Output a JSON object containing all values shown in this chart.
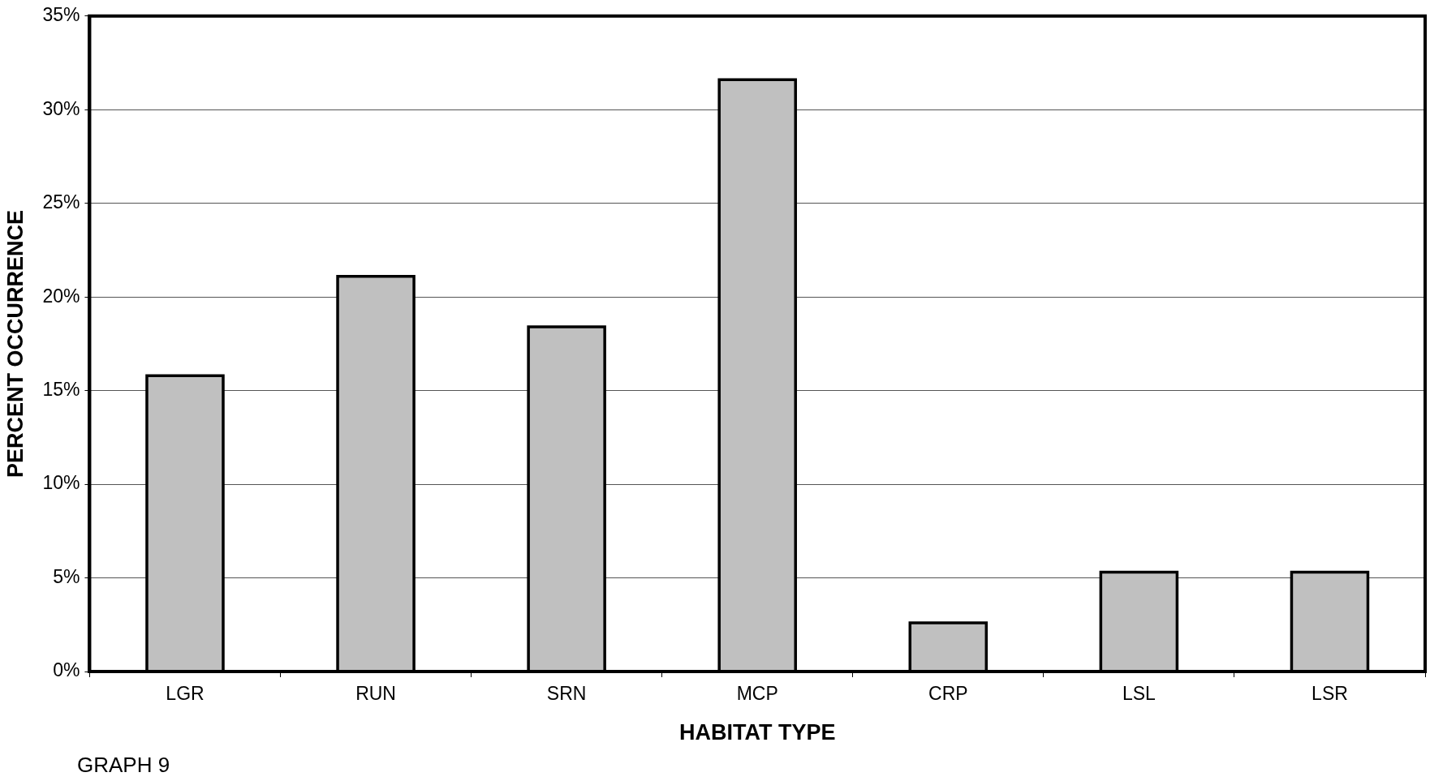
{
  "chart_data": {
    "type": "bar",
    "xlabel": "HABITAT TYPE",
    "ylabel": "PERCENT OCCURRENCE",
    "categories": [
      "LGR",
      "RUN",
      "SRN",
      "MCP",
      "CRP",
      "LSL",
      "LSR"
    ],
    "values": [
      15.8,
      21.1,
      18.4,
      31.6,
      2.6,
      5.3,
      5.3
    ],
    "color": "#c0c0c0",
    "ylim": [
      0,
      35
    ],
    "yticks": [
      {
        "value": 0,
        "label": "0%"
      },
      {
        "value": 5,
        "label": "5%"
      },
      {
        "value": 10,
        "label": "10%"
      },
      {
        "value": 15,
        "label": "15%"
      },
      {
        "value": 20,
        "label": "20%"
      },
      {
        "value": 25,
        "label": "25%"
      },
      {
        "value": 30,
        "label": "30%"
      },
      {
        "value": 35,
        "label": "35%"
      }
    ],
    "grid": "y",
    "legend": false,
    "annotations": [
      "GRAPH 9"
    ]
  }
}
